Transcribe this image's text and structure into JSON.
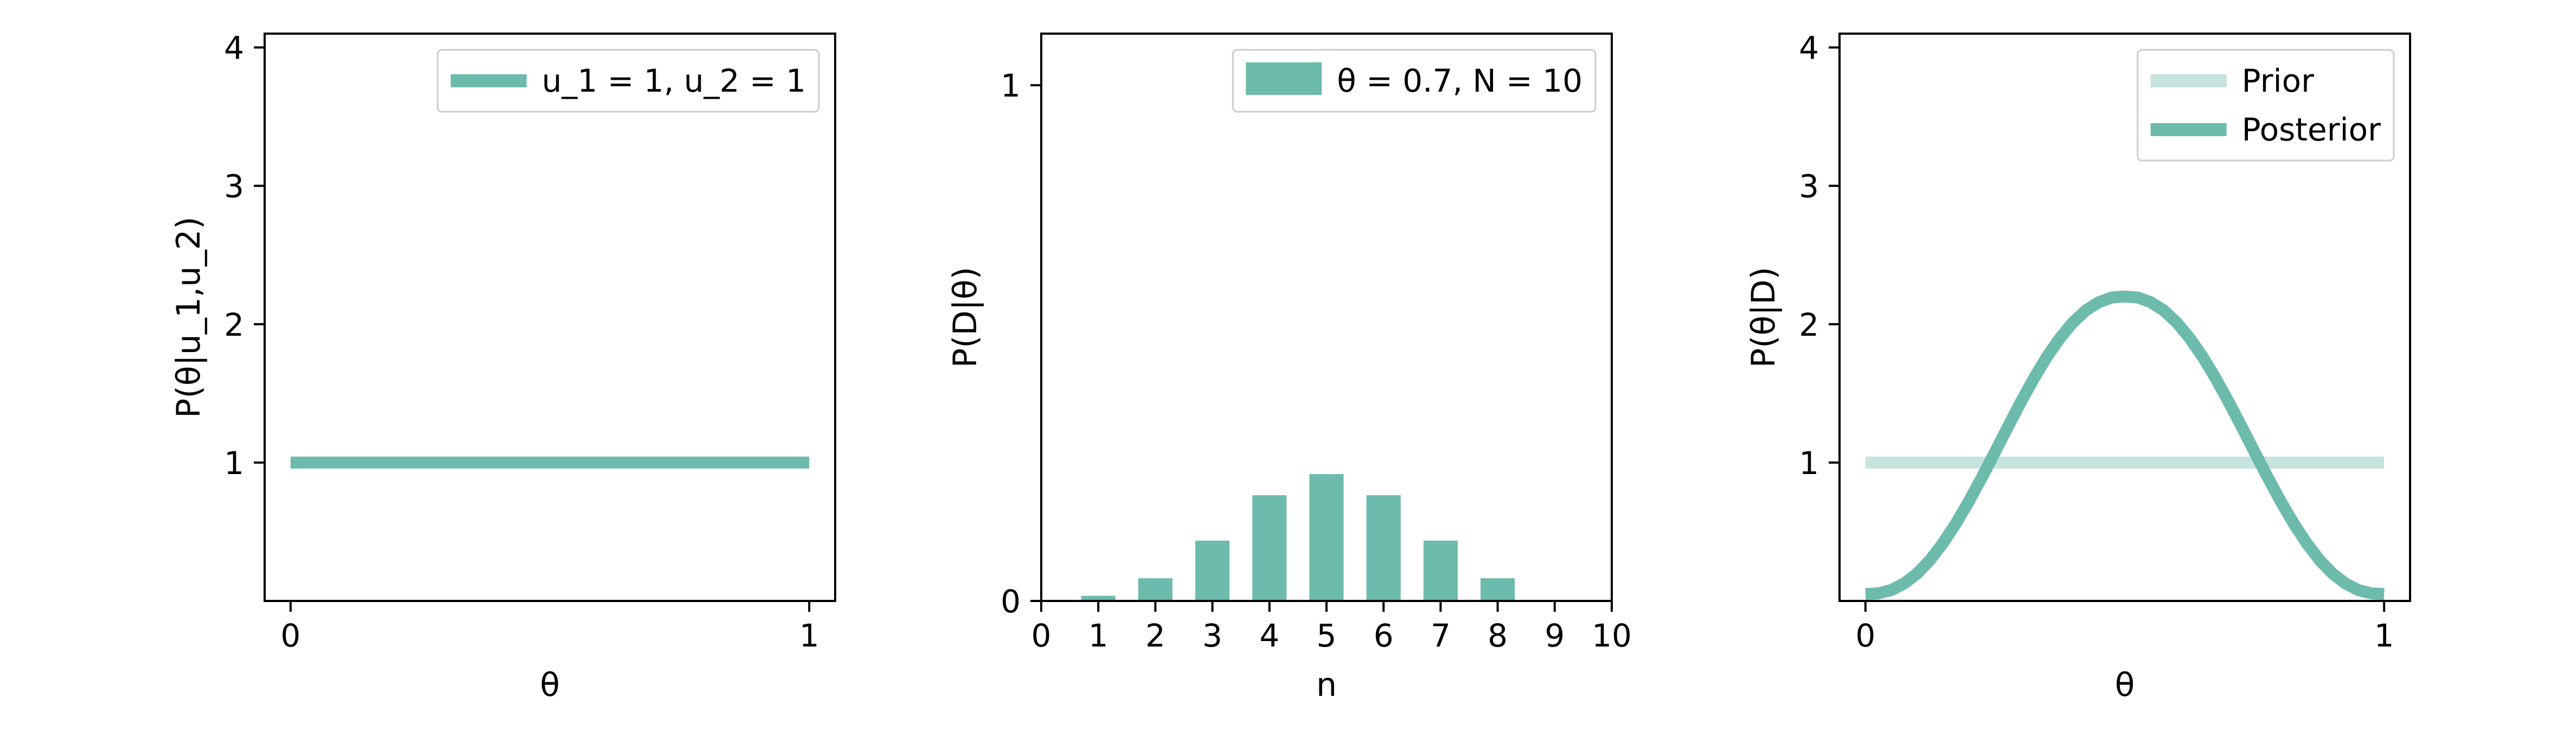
{
  "colors": {
    "series": "#6cbbac",
    "prior": "#c4e4dd",
    "axis": "#000000",
    "background": "#ffffff"
  },
  "chart_data": [
    {
      "type": "line",
      "xlabel": "θ",
      "ylabel": "P(θ|u_1,u_2)",
      "xlim": [
        -0.05,
        1.05
      ],
      "ylim": [
        0,
        4.1
      ],
      "xticks": [
        {
          "v": 0,
          "label": "0"
        },
        {
          "v": 1,
          "label": "1"
        }
      ],
      "yticks": [
        {
          "v": 1,
          "label": "1"
        },
        {
          "v": 2,
          "label": "2"
        },
        {
          "v": 3,
          "label": "3"
        },
        {
          "v": 4,
          "label": "4"
        }
      ],
      "legend_position": "top-right",
      "series": [
        {
          "name": "u_1 = 1, u_2 = 1",
          "x": [
            0,
            1
          ],
          "y": [
            1,
            1
          ]
        }
      ]
    },
    {
      "type": "bar",
      "xlabel": "n",
      "ylabel": "P(D|θ)",
      "xlim": [
        0,
        10
      ],
      "ylim": [
        0,
        1.1
      ],
      "xticks": [
        {
          "v": 0,
          "label": "0"
        },
        {
          "v": 1,
          "label": "1"
        },
        {
          "v": 2,
          "label": "2"
        },
        {
          "v": 3,
          "label": "3"
        },
        {
          "v": 4,
          "label": "4"
        },
        {
          "v": 5,
          "label": "5"
        },
        {
          "v": 6,
          "label": "6"
        },
        {
          "v": 7,
          "label": "7"
        },
        {
          "v": 8,
          "label": "8"
        },
        {
          "v": 9,
          "label": "9"
        },
        {
          "v": 10,
          "label": "10"
        }
      ],
      "yticks": [
        {
          "v": 0,
          "label": "0"
        },
        {
          "v": 1,
          "label": "1"
        }
      ],
      "legend_position": "top-right",
      "series": [
        {
          "name": "θ = 0.7, N = 10",
          "x": [
            0,
            1,
            2,
            3,
            4,
            5,
            6,
            7,
            8,
            9,
            10
          ],
          "y": [
            0.001,
            0.01,
            0.044,
            0.117,
            0.205,
            0.246,
            0.205,
            0.117,
            0.044,
            0.0,
            0.0
          ]
        }
      ]
    },
    {
      "type": "line",
      "xlabel": "θ",
      "ylabel": "P(θ|D)",
      "xlim": [
        -0.05,
        1.05
      ],
      "ylim": [
        0,
        4.1
      ],
      "xticks": [
        {
          "v": 0,
          "label": "0"
        },
        {
          "v": 1,
          "label": "1"
        }
      ],
      "yticks": [
        {
          "v": 1,
          "label": "1"
        },
        {
          "v": 2,
          "label": "2"
        },
        {
          "v": 3,
          "label": "3"
        },
        {
          "v": 4,
          "label": "4"
        }
      ],
      "legend_position": "top-right",
      "series": [
        {
          "name": "Prior",
          "x": [
            0,
            1
          ],
          "y": [
            1,
            1
          ]
        },
        {
          "name": "Posterior",
          "x": [
            0,
            0.025,
            0.05,
            0.075,
            0.1,
            0.125,
            0.15,
            0.175,
            0.2,
            0.225,
            0.25,
            0.275,
            0.3,
            0.325,
            0.35,
            0.375,
            0.4,
            0.425,
            0.45,
            0.475,
            0.5,
            0.525,
            0.55,
            0.575,
            0.6,
            0.625,
            0.65,
            0.675,
            0.7,
            0.725,
            0.75,
            0.775,
            0.8,
            0.825,
            0.85,
            0.875,
            0.9,
            0.925,
            0.95,
            0.975,
            1
          ],
          "y": [
            0.05,
            0.055,
            0.079,
            0.127,
            0.2,
            0.298,
            0.421,
            0.564,
            0.724,
            0.897,
            1.078,
            1.261,
            1.44,
            1.61,
            1.765,
            1.9,
            2.013,
            2.1,
            2.159,
            2.193,
            2.2,
            2.193,
            2.159,
            2.1,
            2.013,
            1.9,
            1.765,
            1.61,
            1.44,
            1.261,
            1.078,
            0.897,
            0.724,
            0.564,
            0.421,
            0.298,
            0.2,
            0.127,
            0.079,
            0.055,
            0.05
          ]
        }
      ]
    }
  ]
}
